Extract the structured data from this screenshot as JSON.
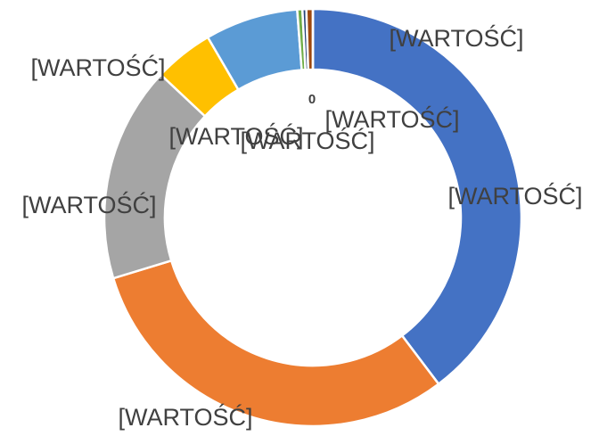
{
  "chart_data": {
    "type": "donut",
    "values": [
      39.7,
      30.6,
      16.7,
      4.6,
      7.2,
      0.4,
      0.3,
      0.5,
      0
    ],
    "value_labels": [
      "[WARTOŚĆ]",
      "[WARTOŚĆ]",
      "[WARTOŚĆ]",
      "[WARTOŚĆ]",
      "[WARTOŚĆ]",
      "[WARTOŚĆ]",
      "[WARTOŚĆ]",
      "[WARTOŚĆ]",
      "0"
    ],
    "colors": [
      "#4472c4",
      "#ed7d31",
      "#a5a5a5",
      "#ffc000",
      "#5b9bd5",
      "#70ad47",
      "#264478",
      "#9e480e",
      "#636363"
    ]
  }
}
